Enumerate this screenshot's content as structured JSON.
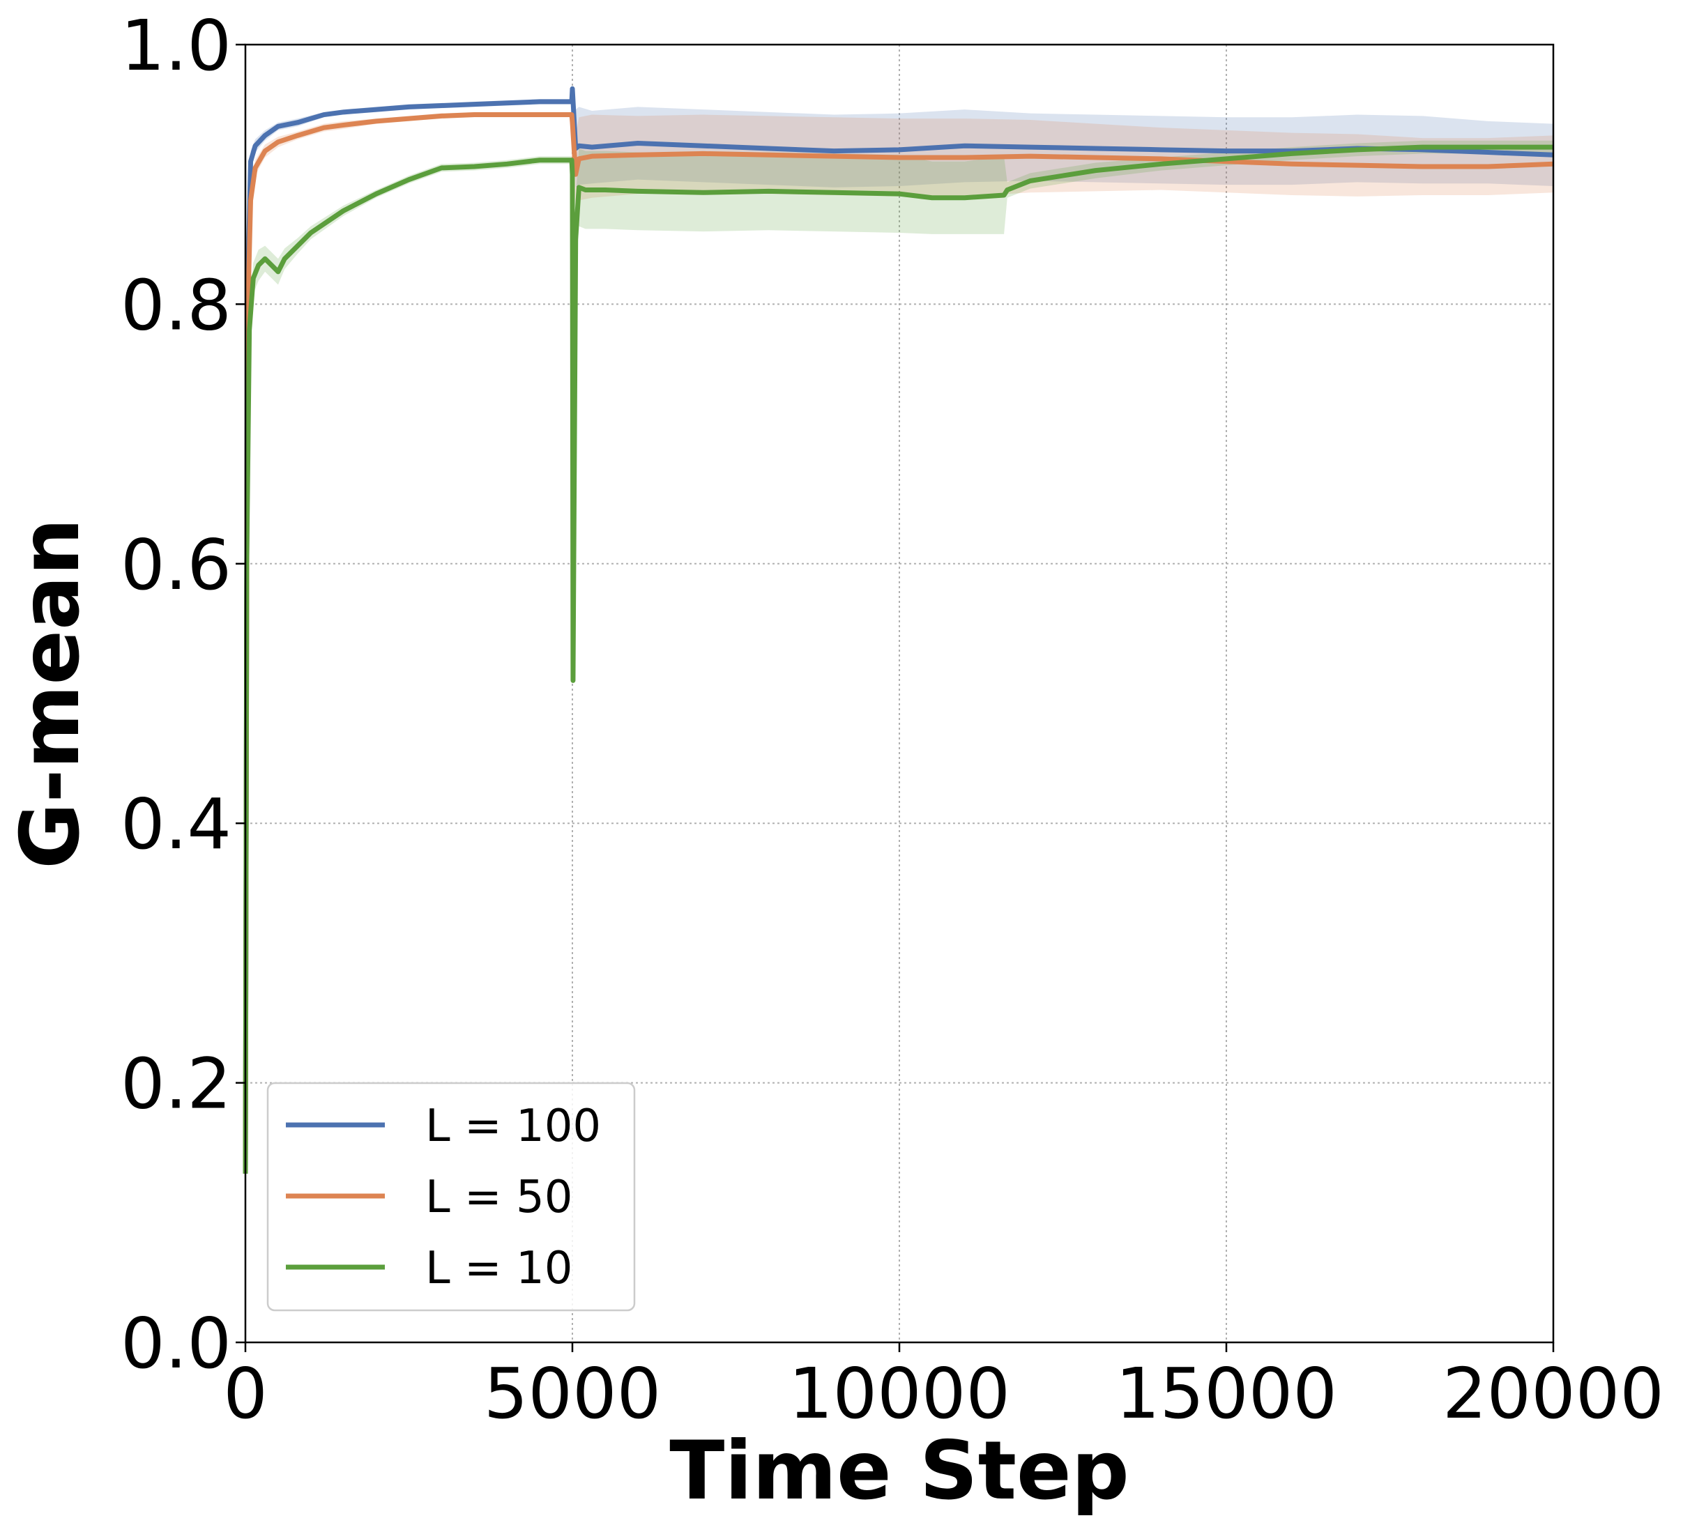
{
  "chart_data": {
    "type": "line",
    "title": "",
    "xlabel": "Time Step",
    "ylabel": "G-mean",
    "xlim": [
      0,
      20000
    ],
    "ylim": [
      0.0,
      1.0
    ],
    "xticks": [
      "0",
      "5000",
      "10000",
      "15000",
      "20000"
    ],
    "yticks": [
      "0.0",
      "0.2",
      "0.4",
      "0.6",
      "0.8",
      "1.0"
    ],
    "grid": true,
    "legend_position": "lower-left",
    "series": [
      {
        "name": "L = 100",
        "color": "#4c72b0",
        "x": [
          0,
          30,
          80,
          150,
          300,
          500,
          800,
          1200,
          1500,
          2000,
          2500,
          3000,
          3500,
          4000,
          4500,
          4990,
          5000,
          5050,
          5100,
          5300,
          6000,
          7000,
          8000,
          9000,
          10000,
          11000,
          12000,
          13000,
          14000,
          15000,
          16000,
          17000,
          18000,
          19000,
          20000
        ],
        "y": [
          0.13,
          0.8,
          0.91,
          0.922,
          0.93,
          0.937,
          0.94,
          0.946,
          0.948,
          0.95,
          0.952,
          0.953,
          0.954,
          0.955,
          0.956,
          0.956,
          0.966,
          0.92,
          0.922,
          0.921,
          0.924,
          0.922,
          0.92,
          0.918,
          0.919,
          0.922,
          0.921,
          0.92,
          0.919,
          0.918,
          0.918,
          0.92,
          0.919,
          0.917,
          0.915
        ],
        "band": [
          0.0,
          0.01,
          0.008,
          0.005,
          0.004,
          0.003,
          0.003,
          0.002,
          0.002,
          0.002,
          0.002,
          0.002,
          0.002,
          0.002,
          0.002,
          0.002,
          0.0,
          0.03,
          0.03,
          0.028,
          0.028,
          0.028,
          0.028,
          0.028,
          0.028,
          0.028,
          0.026,
          0.026,
          0.026,
          0.026,
          0.026,
          0.026,
          0.026,
          0.024,
          0.024
        ]
      },
      {
        "name": "L = 50",
        "color": "#dd8452",
        "x": [
          0,
          30,
          80,
          150,
          300,
          500,
          800,
          1200,
          1500,
          2000,
          2500,
          3000,
          3500,
          4000,
          4500,
          4990,
          5000,
          5050,
          5100,
          5300,
          6000,
          7000,
          8000,
          9000,
          10000,
          11000,
          12000,
          13000,
          14000,
          15000,
          16000,
          17000,
          18000,
          19000,
          20000
        ],
        "y": [
          0.13,
          0.78,
          0.88,
          0.905,
          0.918,
          0.925,
          0.93,
          0.936,
          0.938,
          0.941,
          0.943,
          0.945,
          0.946,
          0.946,
          0.946,
          0.946,
          0.94,
          0.9,
          0.912,
          0.914,
          0.915,
          0.916,
          0.915,
          0.914,
          0.913,
          0.913,
          0.914,
          0.913,
          0.912,
          0.91,
          0.908,
          0.907,
          0.906,
          0.906,
          0.908
        ],
        "band": [
          0.0,
          0.012,
          0.01,
          0.006,
          0.005,
          0.004,
          0.003,
          0.003,
          0.003,
          0.002,
          0.002,
          0.002,
          0.002,
          0.002,
          0.002,
          0.002,
          0.0,
          0.03,
          0.032,
          0.032,
          0.03,
          0.03,
          0.03,
          0.03,
          0.03,
          0.03,
          0.028,
          0.026,
          0.024,
          0.024,
          0.024,
          0.024,
          0.022,
          0.022,
          0.022
        ]
      },
      {
        "name": "L = 10",
        "color": "#5b9e3c",
        "x": [
          0,
          20,
          60,
          120,
          200,
          300,
          400,
          500,
          600,
          800,
          1000,
          1500,
          2000,
          2500,
          3000,
          3500,
          4000,
          4500,
          4990,
          5000,
          5010,
          5050,
          5100,
          5200,
          5500,
          6000,
          7000,
          8000,
          9000,
          10000,
          10500,
          11000,
          11600,
          11650,
          12000,
          13000,
          14000,
          15000,
          16000,
          17000,
          18000,
          19000,
          20000
        ],
        "y": [
          0.13,
          0.6,
          0.78,
          0.82,
          0.83,
          0.835,
          0.83,
          0.825,
          0.835,
          0.845,
          0.855,
          0.872,
          0.885,
          0.896,
          0.905,
          0.906,
          0.908,
          0.911,
          0.911,
          0.9,
          0.51,
          0.85,
          0.89,
          0.888,
          0.888,
          0.887,
          0.886,
          0.887,
          0.886,
          0.885,
          0.882,
          0.882,
          0.884,
          0.888,
          0.895,
          0.903,
          0.908,
          0.912,
          0.916,
          0.919,
          0.921,
          0.921,
          0.921
        ],
        "band": [
          0.0,
          0.01,
          0.01,
          0.012,
          0.012,
          0.01,
          0.01,
          0.01,
          0.008,
          0.006,
          0.005,
          0.004,
          0.003,
          0.003,
          0.003,
          0.003,
          0.003,
          0.003,
          0.003,
          0.0,
          0.0,
          0.03,
          0.03,
          0.03,
          0.03,
          0.03,
          0.03,
          0.03,
          0.03,
          0.03,
          0.028,
          0.028,
          0.03,
          0.006,
          0.006,
          0.006,
          0.005,
          0.005,
          0.005,
          0.005,
          0.005,
          0.005,
          0.005
        ]
      }
    ]
  }
}
